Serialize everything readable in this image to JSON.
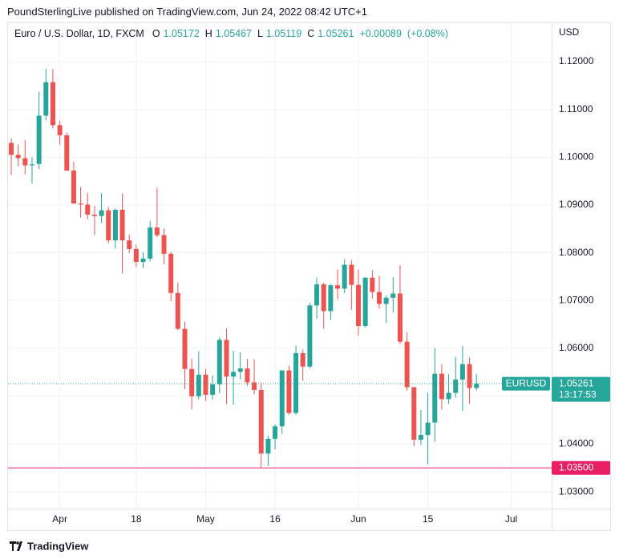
{
  "header": "PoundSterlingLive published on TradingView.com, Jun 24, 2022 08:42 UTC+1",
  "brand": "TradingView",
  "chart_data": {
    "type": "candlestick",
    "title": "Euro / U.S. Dollar, 1D, FXCM",
    "symbol": "EURUSD",
    "currency": "USD",
    "countdown": "13:17:53",
    "ohlc_letters": [
      "O",
      "H",
      "L",
      "C"
    ],
    "change": {
      "value": 0.00089,
      "label": "+0.00089"
    },
    "change_pct": {
      "value": 0.08,
      "label": "(+0.08%)"
    },
    "up_color": "#26a69a",
    "down_color": "#ef5350",
    "hline": {
      "value": 1.035,
      "label": "1.03500",
      "color": "#e91e63"
    },
    "dates": [
      "2022-03-23",
      "2022-03-24",
      "2022-03-25",
      "2022-03-28",
      "2022-03-29",
      "2022-03-30",
      "2022-03-31",
      "2022-04-01",
      "2022-04-04",
      "2022-04-05",
      "2022-04-06",
      "2022-04-07",
      "2022-04-08",
      "2022-04-11",
      "2022-04-12",
      "2022-04-13",
      "2022-04-14",
      "2022-04-15",
      "2022-04-18",
      "2022-04-19",
      "2022-04-20",
      "2022-04-21",
      "2022-04-22",
      "2022-04-25",
      "2022-04-26",
      "2022-04-27",
      "2022-04-28",
      "2022-04-29",
      "2022-05-02",
      "2022-05-03",
      "2022-05-04",
      "2022-05-05",
      "2022-05-06",
      "2022-05-09",
      "2022-05-10",
      "2022-05-11",
      "2022-05-12",
      "2022-05-13",
      "2022-05-16",
      "2022-05-17",
      "2022-05-18",
      "2022-05-19",
      "2022-05-20",
      "2022-05-23",
      "2022-05-24",
      "2022-05-25",
      "2022-05-26",
      "2022-05-27",
      "2022-05-30",
      "2022-05-31",
      "2022-06-01",
      "2022-06-02",
      "2022-06-03",
      "2022-06-06",
      "2022-06-07",
      "2022-06-08",
      "2022-06-09",
      "2022-06-10",
      "2022-06-13",
      "2022-06-14",
      "2022-06-15",
      "2022-06-16",
      "2022-06-17",
      "2022-06-20",
      "2022-06-21",
      "2022-06-22",
      "2022-06-23",
      "2022-06-24"
    ],
    "open": [
      1.103,
      1.1005,
      1.0998,
      1.0983,
      1.0986,
      1.1087,
      1.1157,
      1.1067,
      1.1046,
      1.0972,
      1.0903,
      1.0901,
      1.088,
      1.0877,
      1.0889,
      1.0826,
      1.089,
      1.0826,
      1.0808,
      1.0781,
      1.0788,
      1.0853,
      1.0837,
      1.0798,
      1.0716,
      1.0641,
      1.0557,
      1.05,
      1.0545,
      1.0503,
      1.0525,
      1.0618,
      1.0541,
      1.0551,
      1.0558,
      1.0529,
      1.0513,
      1.038,
      1.0411,
      1.0437,
      1.0554,
      1.0465,
      1.059,
      1.0562,
      1.069,
      1.0734,
      1.0678,
      1.0732,
      1.0725,
      1.0775,
      1.0733,
      1.0647,
      1.0748,
      1.0718,
      1.0693,
      1.0706,
      1.0715,
      1.0614,
      1.0519,
      1.0409,
      1.0419,
      1.0445,
      1.0547,
      1.0494,
      1.0507,
      1.0535,
      1.0567,
      1.05172
    ],
    "high": [
      1.104,
      1.1027,
      1.1036,
      1.1,
      1.1137,
      1.1185,
      1.1184,
      1.1076,
      1.1052,
      1.099,
      1.0938,
      1.0925,
      1.0898,
      1.0925,
      1.0896,
      1.0893,
      1.0924,
      1.0838,
      1.0817,
      1.0801,
      1.0867,
      1.0936,
      1.0851,
      1.0802,
      1.0738,
      1.0656,
      1.0579,
      1.0594,
      1.0557,
      1.0543,
      1.0624,
      1.0642,
      1.0595,
      1.0592,
      1.0578,
      1.0577,
      1.0529,
      1.0418,
      1.0441,
      1.0549,
      1.0564,
      1.0606,
      1.0598,
      1.0696,
      1.0748,
      1.0737,
      1.0735,
      1.0765,
      1.0787,
      1.0785,
      1.0765,
      1.0749,
      1.0764,
      1.0752,
      1.0711,
      1.0749,
      1.0774,
      1.0634,
      1.0519,
      1.0471,
      1.0507,
      1.0601,
      1.0567,
      1.0546,
      1.0582,
      1.0605,
      1.0581,
      1.05467
    ],
    "low": [
      1.0963,
      1.0981,
      1.0964,
      1.0945,
      1.0975,
      1.1077,
      1.106,
      1.1026,
      1.098,
      1.0905,
      1.0874,
      1.087,
      1.0837,
      1.0862,
      1.082,
      1.0809,
      1.0757,
      1.0799,
      1.077,
      1.0768,
      1.0782,
      1.0833,
      1.0776,
      1.0699,
      1.0638,
      1.0515,
      1.0472,
      1.0493,
      1.049,
      1.0493,
      1.0506,
      1.0483,
      1.0482,
      1.0535,
      1.0522,
      1.0504,
      1.035,
      1.0354,
      1.0389,
      1.0421,
      1.0461,
      1.0461,
      1.0532,
      1.0558,
      1.0662,
      1.0641,
      1.066,
      1.0703,
      1.0716,
      1.0681,
      1.0627,
      1.0643,
      1.0704,
      1.0683,
      1.0653,
      1.0675,
      1.0609,
      1.0512,
      1.0396,
      1.0398,
      1.0358,
      1.0404,
      1.0472,
      1.0484,
      1.0497,
      1.0469,
      1.0484,
      1.05119
    ],
    "close": [
      1.1005,
      1.0998,
      1.0983,
      1.0985,
      1.1087,
      1.1157,
      1.1067,
      1.1046,
      1.0972,
      1.0903,
      1.0901,
      1.088,
      1.0877,
      1.0889,
      1.0826,
      1.089,
      1.0826,
      1.0808,
      1.0781,
      1.0788,
      1.0853,
      1.0837,
      1.0798,
      1.0716,
      1.0641,
      1.0557,
      1.05,
      1.0545,
      1.0503,
      1.0525,
      1.0618,
      1.0541,
      1.0551,
      1.0558,
      1.0529,
      1.0513,
      1.038,
      1.0411,
      1.0437,
      1.0554,
      1.0465,
      1.059,
      1.0562,
      1.069,
      1.0734,
      1.0678,
      1.0732,
      1.0725,
      1.0775,
      1.0733,
      1.0647,
      1.0748,
      1.0718,
      1.0693,
      1.0706,
      1.0715,
      1.0614,
      1.0519,
      1.0409,
      1.0419,
      1.0445,
      1.0547,
      1.0494,
      1.0507,
      1.0535,
      1.0567,
      1.05172,
      1.05261
    ],
    "ylim": [
      1.0265,
      1.1282
    ],
    "yticks": [
      {
        "value": 1.03,
        "label": "1.03000"
      },
      {
        "value": 1.04,
        "label": "1.04000"
      },
      {
        "value": 1.05,
        "label": "1.05000"
      },
      {
        "value": 1.06,
        "label": "1.06000"
      },
      {
        "value": 1.07,
        "label": "1.07000"
      },
      {
        "value": 1.08,
        "label": "1.08000"
      },
      {
        "value": 1.09,
        "label": "1.09000"
      },
      {
        "value": 1.1,
        "label": "1.10000"
      },
      {
        "value": 1.11,
        "label": "1.11000"
      },
      {
        "value": 1.12,
        "label": "1.12000"
      }
    ],
    "xticks": [
      {
        "value": "2022-04-01",
        "label": "Apr"
      },
      {
        "value": "2022-04-18",
        "label": "18"
      },
      {
        "value": "2022-05-02",
        "label": "May"
      },
      {
        "value": "2022-05-16",
        "label": "16"
      },
      {
        "value": "2022-06-01",
        "label": "Jun"
      },
      {
        "value": "2022-06-15",
        "label": "15"
      },
      {
        "value": "2022-07-01",
        "label": "Jul"
      }
    ],
    "grid": true
  }
}
